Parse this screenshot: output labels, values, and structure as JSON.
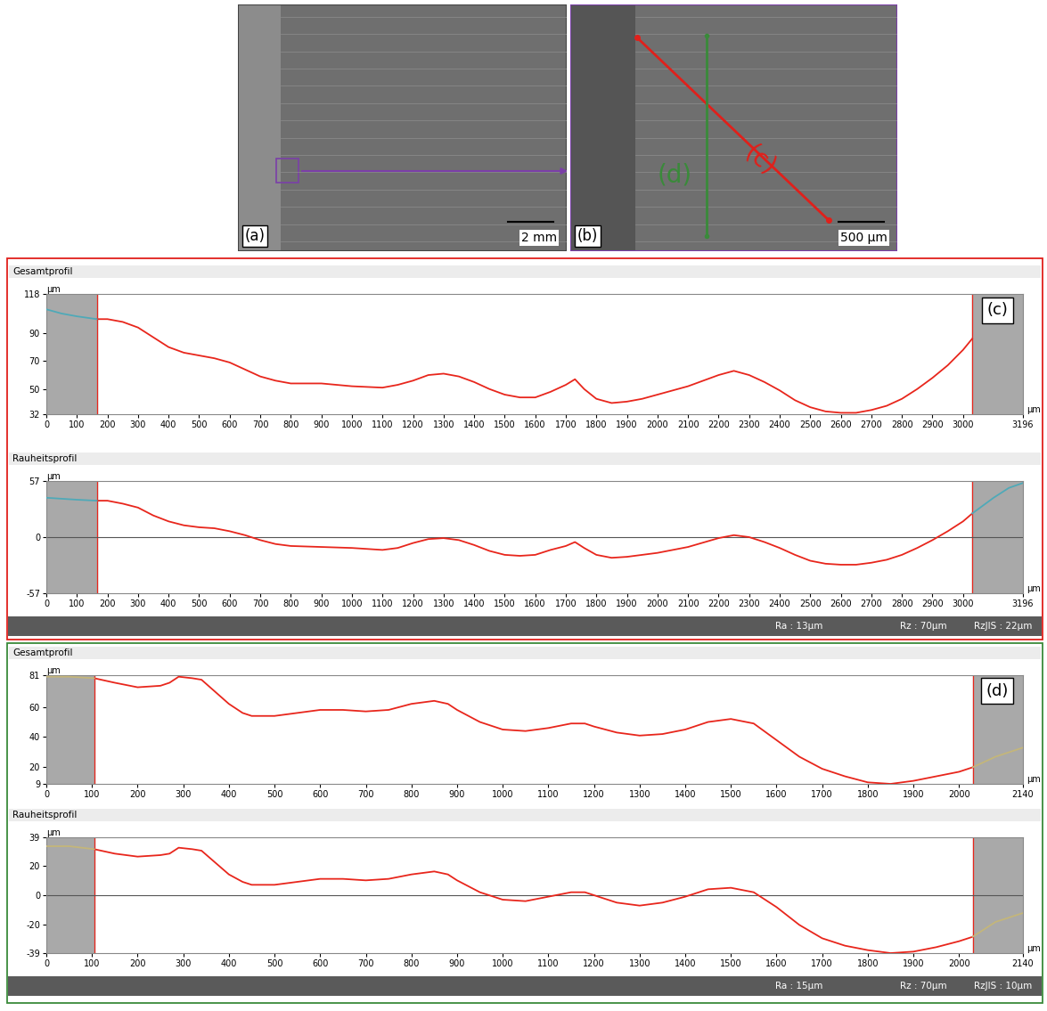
{
  "images": [
    {
      "label": "(a)",
      "scale_bar": "2 mm"
    },
    {
      "label": "(b)",
      "scale_bar": "500 µm",
      "lines": [
        {
          "label": "(c)",
          "color": "#e0201b"
        },
        {
          "label": "(d)",
          "color": "#3a8a3a"
        }
      ]
    }
  ],
  "chart_data": [
    {
      "type": "line",
      "title": "Gesamtprofil",
      "xlabel": "µm",
      "ylabel": "µm",
      "xlim": [
        0,
        3196
      ],
      "ylim": [
        32,
        118
      ],
      "xticks": [
        0,
        100,
        200,
        300,
        400,
        500,
        600,
        700,
        800,
        900,
        1000,
        1100,
        1200,
        1300,
        1400,
        1500,
        1600,
        1700,
        1800,
        1900,
        2000,
        2100,
        2200,
        2300,
        2400,
        2500,
        2600,
        2700,
        2800,
        2900,
        3000,
        3196
      ],
      "yticks": [
        32,
        50,
        70,
        90,
        118
      ],
      "excluded_ranges": [
        [
          0,
          165
        ],
        [
          3030,
          3196
        ]
      ],
      "panel_label": "(c)",
      "series": [
        {
          "color": "#e8261c",
          "x": [
            165,
            200,
            250,
            300,
            350,
            400,
            450,
            500,
            550,
            600,
            650,
            700,
            750,
            800,
            900,
            1000,
            1100,
            1150,
            1200,
            1250,
            1300,
            1350,
            1400,
            1450,
            1500,
            1550,
            1600,
            1650,
            1700,
            1730,
            1760,
            1800,
            1850,
            1900,
            1950,
            2000,
            2100,
            2200,
            2250,
            2300,
            2350,
            2400,
            2450,
            2500,
            2550,
            2600,
            2650,
            2700,
            2750,
            2800,
            2850,
            2900,
            2950,
            3000,
            3030
          ],
          "values": [
            100,
            100,
            98,
            94,
            87,
            80,
            76,
            74,
            72,
            69,
            64,
            59,
            56,
            54,
            54,
            52,
            51,
            53,
            56,
            60,
            61,
            59,
            55,
            50,
            46,
            44,
            44,
            48,
            53,
            57,
            50,
            43,
            40,
            41,
            43,
            46,
            52,
            60,
            63,
            60,
            55,
            49,
            42,
            37,
            34,
            33,
            33,
            35,
            38,
            43,
            50,
            58,
            67,
            78,
            86
          ]
        },
        {
          "color": "#4fa9b8",
          "x": [
            0,
            50,
            100,
            165
          ],
          "values": [
            107,
            104,
            102,
            100
          ]
        }
      ]
    },
    {
      "type": "line",
      "title": "Rauheitsprofil",
      "xlabel": "µm",
      "ylabel": "µm",
      "xlim": [
        0,
        3196
      ],
      "ylim": [
        -57,
        57
      ],
      "xticks": [
        0,
        100,
        200,
        300,
        400,
        500,
        600,
        700,
        800,
        900,
        1000,
        1100,
        1200,
        1300,
        1400,
        1500,
        1600,
        1700,
        1800,
        1900,
        2000,
        2100,
        2200,
        2300,
        2400,
        2500,
        2600,
        2700,
        2800,
        2900,
        3000,
        3196
      ],
      "yticks": [
        -57,
        0,
        57
      ],
      "excluded_ranges": [
        [
          0,
          165
        ],
        [
          3030,
          3196
        ]
      ],
      "baseline": 0,
      "statistics": [
        "Ra : 13µm",
        "Rz : 70µm",
        "RzJIS : 22µm"
      ],
      "series": [
        {
          "color": "#e8261c",
          "x": [
            165,
            200,
            250,
            300,
            350,
            400,
            450,
            500,
            550,
            600,
            650,
            700,
            750,
            800,
            900,
            1000,
            1100,
            1150,
            1200,
            1250,
            1300,
            1350,
            1400,
            1450,
            1500,
            1550,
            1600,
            1650,
            1700,
            1730,
            1760,
            1800,
            1850,
            1900,
            1950,
            2000,
            2100,
            2200,
            2250,
            2300,
            2350,
            2400,
            2450,
            2500,
            2550,
            2600,
            2650,
            2700,
            2750,
            2800,
            2850,
            2900,
            2950,
            3000,
            3030
          ],
          "values": [
            37,
            37,
            34,
            30,
            22,
            16,
            12,
            10,
            9,
            6,
            2,
            -3,
            -7,
            -9,
            -10,
            -11,
            -13,
            -11,
            -6,
            -2,
            -1,
            -3,
            -8,
            -14,
            -18,
            -19,
            -18,
            -13,
            -9,
            -5,
            -11,
            -18,
            -21,
            -20,
            -18,
            -16,
            -10,
            -1,
            2,
            0,
            -5,
            -11,
            -18,
            -24,
            -27,
            -28,
            -28,
            -26,
            -23,
            -18,
            -11,
            -3,
            6,
            16,
            24
          ]
        },
        {
          "color": "#4fa9b8",
          "x": [
            0,
            50,
            100,
            165
          ],
          "values": [
            40,
            39,
            38,
            37
          ]
        },
        {
          "color": "#4fa9b8",
          "x": [
            3030,
            3100,
            3150,
            3196
          ],
          "values": [
            24,
            40,
            50,
            55
          ]
        }
      ]
    },
    {
      "type": "line",
      "title": "Gesamtprofil",
      "xlabel": "µm",
      "ylabel": "µm",
      "xlim": [
        0,
        2140
      ],
      "ylim": [
        9,
        81
      ],
      "xticks": [
        0,
        100,
        200,
        300,
        400,
        500,
        600,
        700,
        800,
        900,
        1000,
        1100,
        1200,
        1300,
        1400,
        1500,
        1600,
        1700,
        1800,
        1900,
        2000,
        2140
      ],
      "yticks": [
        9,
        20,
        40,
        60,
        81
      ],
      "excluded_ranges": [
        [
          0,
          105
        ],
        [
          2030,
          2140
        ]
      ],
      "panel_label": "(d)",
      "series": [
        {
          "color": "#e8261c",
          "x": [
            105,
            150,
            200,
            250,
            270,
            290,
            320,
            340,
            370,
            400,
            430,
            450,
            500,
            550,
            600,
            650,
            700,
            750,
            800,
            850,
            880,
            900,
            950,
            1000,
            1050,
            1100,
            1150,
            1180,
            1200,
            1250,
            1300,
            1350,
            1400,
            1450,
            1500,
            1550,
            1600,
            1650,
            1700,
            1750,
            1800,
            1850,
            1900,
            1950,
            2000,
            2030
          ],
          "values": [
            79,
            76,
            73,
            74,
            76,
            80,
            79,
            78,
            70,
            62,
            56,
            54,
            54,
            56,
            58,
            58,
            57,
            58,
            62,
            64,
            62,
            58,
            50,
            45,
            44,
            46,
            49,
            49,
            47,
            43,
            41,
            42,
            45,
            50,
            52,
            49,
            38,
            27,
            19,
            14,
            10,
            9,
            11,
            14,
            17,
            20
          ]
        },
        {
          "color": "#c4b67a",
          "x": [
            0,
            50,
            105
          ],
          "values": [
            80,
            80,
            79
          ]
        },
        {
          "color": "#c4b67a",
          "x": [
            2030,
            2080,
            2140
          ],
          "values": [
            20,
            27,
            33
          ]
        }
      ]
    },
    {
      "type": "line",
      "title": "Rauheitsprofil",
      "xlabel": "µm",
      "ylabel": "µm",
      "xlim": [
        0,
        2140
      ],
      "ylim": [
        -39,
        39
      ],
      "xticks": [
        0,
        100,
        200,
        300,
        400,
        500,
        600,
        700,
        800,
        900,
        1000,
        1100,
        1200,
        1300,
        1400,
        1500,
        1600,
        1700,
        1800,
        1900,
        2000,
        2140
      ],
      "yticks": [
        -39,
        -20,
        0,
        20,
        39
      ],
      "excluded_ranges": [
        [
          0,
          105
        ],
        [
          2030,
          2140
        ]
      ],
      "baseline": 0,
      "statistics": [
        "Ra : 15µm",
        "Rz : 70µm",
        "RzJIS : 10µm"
      ],
      "series": [
        {
          "color": "#e8261c",
          "x": [
            105,
            150,
            200,
            250,
            270,
            290,
            320,
            340,
            370,
            400,
            430,
            450,
            500,
            550,
            600,
            650,
            700,
            750,
            800,
            850,
            880,
            900,
            950,
            1000,
            1050,
            1100,
            1150,
            1180,
            1200,
            1250,
            1300,
            1350,
            1400,
            1450,
            1500,
            1550,
            1600,
            1650,
            1700,
            1750,
            1800,
            1850,
            1900,
            1950,
            2000,
            2030
          ],
          "values": [
            31,
            28,
            26,
            27,
            28,
            32,
            31,
            30,
            22,
            14,
            9,
            7,
            7,
            9,
            11,
            11,
            10,
            11,
            14,
            16,
            14,
            10,
            2,
            -3,
            -4,
            -1,
            2,
            2,
            0,
            -5,
            -7,
            -5,
            -1,
            4,
            5,
            2,
            -8,
            -20,
            -29,
            -34,
            -37,
            -39,
            -38,
            -35,
            -31,
            -28
          ]
        },
        {
          "color": "#c4b67a",
          "x": [
            0,
            50,
            105
          ],
          "values": [
            33,
            33,
            31
          ]
        },
        {
          "color": "#c4b67a",
          "x": [
            2030,
            2080,
            2140
          ],
          "values": [
            -28,
            -18,
            -12
          ]
        }
      ]
    }
  ]
}
